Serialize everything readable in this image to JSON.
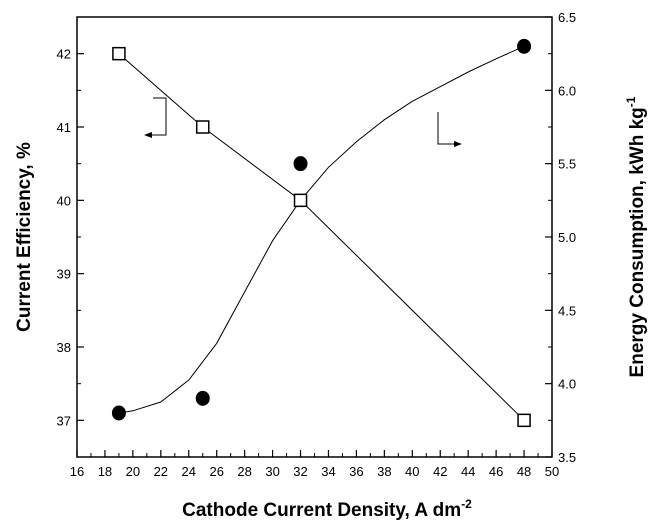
{
  "chart_data": {
    "type": "scatter",
    "title": "",
    "xlabel": "Cathode Current Density, A dm",
    "xlabel_superscript": "-2",
    "ylabel_left": "Current Efficiency, %",
    "ylabel_right": "Energy Consumption, kWh kg",
    "ylabel_right_superscript": "-1",
    "xlim": [
      16,
      50
    ],
    "ylim_left": [
      36.5,
      42.5
    ],
    "ylim_right": [
      3.5,
      6.5
    ],
    "x_ticks": [
      "16",
      "18",
      "20",
      "22",
      "24",
      "26",
      "28",
      "30",
      "32",
      "34",
      "36",
      "38",
      "40",
      "42",
      "44",
      "46",
      "48",
      "50"
    ],
    "y_left_ticks": [
      "37",
      "38",
      "39",
      "40",
      "41",
      "42"
    ],
    "y_right_ticks": [
      "3.5",
      "4.0",
      "4.5",
      "5.0",
      "5.5",
      "6.0",
      "6.5"
    ],
    "grid": false,
    "series": [
      {
        "axis": "right",
        "marker": "open-square",
        "fit": "straight line segments",
        "x": [
          19,
          25,
          32,
          48
        ],
        "values": [
          6.25,
          5.75,
          5.25,
          3.75
        ]
      },
      {
        "axis": "left",
        "marker": "filled-circle",
        "fit": "smooth curve",
        "x": [
          19,
          25,
          32,
          48
        ],
        "values": [
          37.1,
          37.3,
          40.5,
          42.1
        ],
        "curve_x": [
          19,
          20,
          22,
          24,
          26,
          28,
          30,
          32,
          34,
          36,
          38,
          40,
          42,
          44,
          46,
          48
        ],
        "curve_y": [
          37.1,
          37.13,
          37.25,
          37.55,
          38.05,
          38.75,
          39.45,
          40.0,
          40.45,
          40.8,
          41.1,
          41.35,
          41.55,
          41.75,
          41.93,
          42.1
        ]
      }
    ],
    "annotations": [
      {
        "type": "arrow",
        "points_to": "left-axis",
        "near_series": "open-square"
      },
      {
        "type": "arrow",
        "points_to": "right-axis",
        "near_series": "filled-circle"
      }
    ]
  }
}
